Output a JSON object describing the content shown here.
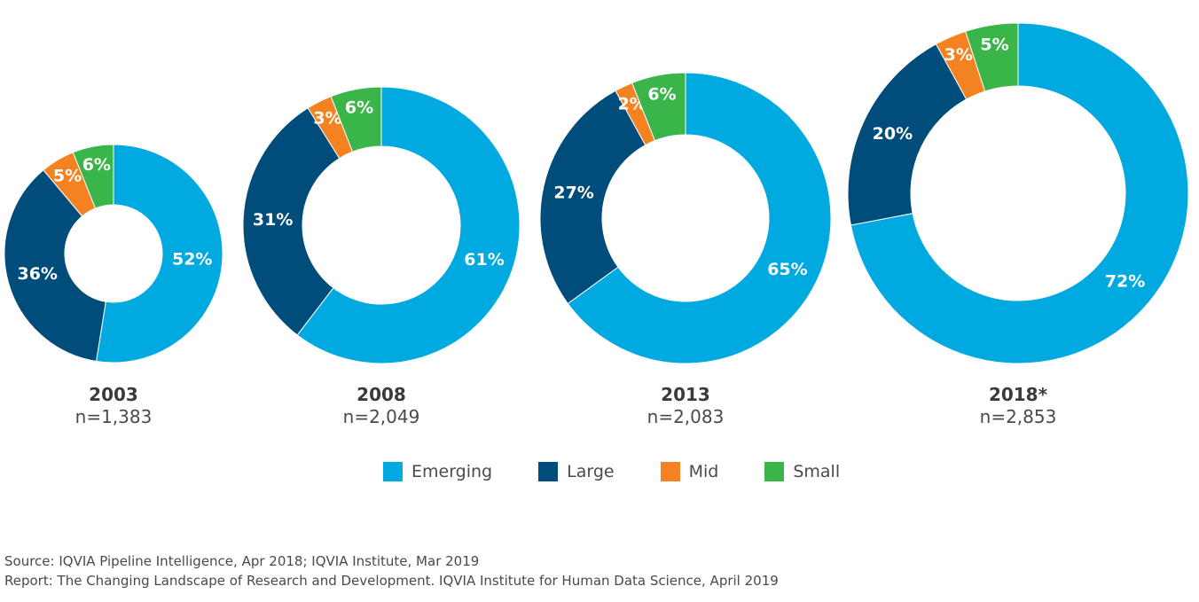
{
  "colors": {
    "Emerging": "#00A9E0",
    "Large": "#004C7A",
    "Mid": "#F58220",
    "Small": "#3AB54A"
  },
  "chart_data": [
    {
      "type": "pie",
      "title": "2003",
      "subtitle": "n=1,383",
      "slices": [
        {
          "name": "Emerging",
          "value": 52,
          "label": "52%"
        },
        {
          "name": "Large",
          "value": 36,
          "label": "36%"
        },
        {
          "name": "Mid",
          "value": 5,
          "label": "5%"
        },
        {
          "name": "Small",
          "value": 6,
          "label": "6%"
        }
      ]
    },
    {
      "type": "pie",
      "title": "2008",
      "subtitle": "n=2,049",
      "slices": [
        {
          "name": "Emerging",
          "value": 61,
          "label": "61%"
        },
        {
          "name": "Large",
          "value": 31,
          "label": "31%"
        },
        {
          "name": "Mid",
          "value": 3,
          "label": "3%"
        },
        {
          "name": "Small",
          "value": 6,
          "label": "6%"
        }
      ]
    },
    {
      "type": "pie",
      "title": "2013",
      "subtitle": "n=2,083",
      "slices": [
        {
          "name": "Emerging",
          "value": 65,
          "label": "65%"
        },
        {
          "name": "Large",
          "value": 27,
          "label": "27%"
        },
        {
          "name": "Mid",
          "value": 2,
          "label": "2%"
        },
        {
          "name": "Small",
          "value": 6,
          "label": "6%"
        }
      ]
    },
    {
      "type": "pie",
      "title": "2018*",
      "subtitle": "n=2,853",
      "slices": [
        {
          "name": "Emerging",
          "value": 72,
          "label": "72%"
        },
        {
          "name": "Large",
          "value": 20,
          "label": "20%"
        },
        {
          "name": "Mid",
          "value": 3,
          "label": "3%"
        },
        {
          "name": "Small",
          "value": 5,
          "label": "5%"
        }
      ]
    }
  ],
  "legend": {
    "items": [
      {
        "name": "Emerging",
        "label": "Emerging"
      },
      {
        "name": "Large",
        "label": "Large"
      },
      {
        "name": "Mid",
        "label": "Mid"
      },
      {
        "name": "Small",
        "label": "Small"
      }
    ]
  },
  "footer": {
    "source": "Source: IQVIA Pipeline Intelligence, Apr 2018; IQVIA Institute, Mar 2019",
    "report": "Report: The Changing Landscape of Research and Development. IQVIA Institute for Human Data Science, April 2019"
  }
}
